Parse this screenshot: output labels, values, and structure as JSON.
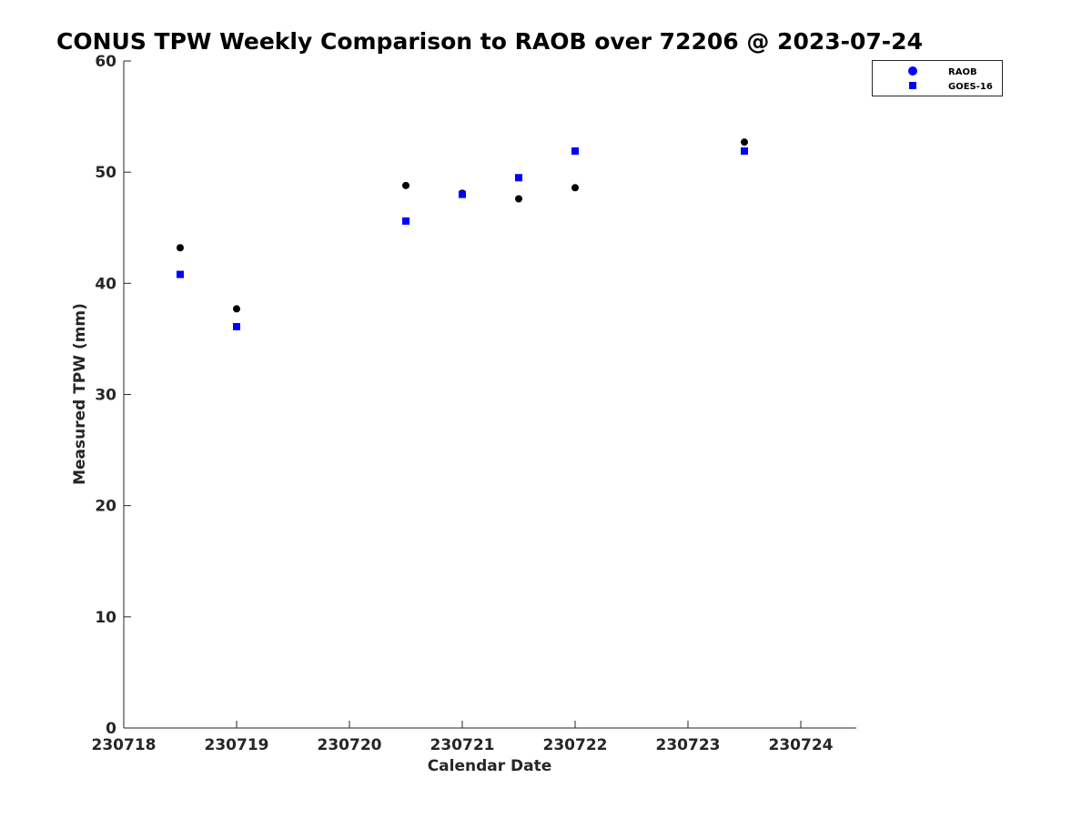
{
  "chart_data": {
    "type": "scatter",
    "title": "CONUS TPW Weekly Comparison to RAOB over 72206 @ 2023-07-24",
    "xlabel": "Calendar Date",
    "ylabel": "Measured TPW (mm)",
    "xlim": [
      0,
      6.5
    ],
    "ylim": [
      0,
      60
    ],
    "x_ticks": [
      {
        "value": 0,
        "label": "230718"
      },
      {
        "value": 1,
        "label": "230719"
      },
      {
        "value": 2,
        "label": "230720"
      },
      {
        "value": 3,
        "label": "230721"
      },
      {
        "value": 4,
        "label": "230722"
      },
      {
        "value": 5,
        "label": "230723"
      },
      {
        "value": 6,
        "label": "230724"
      }
    ],
    "y_ticks": [
      {
        "value": 0,
        "label": "0"
      },
      {
        "value": 10,
        "label": "10"
      },
      {
        "value": 20,
        "label": "20"
      },
      {
        "value": 30,
        "label": "30"
      },
      {
        "value": 40,
        "label": "40"
      },
      {
        "value": 50,
        "label": "50"
      },
      {
        "value": 60,
        "label": "60"
      }
    ],
    "grid": false,
    "legend_position": "top-right",
    "series": [
      {
        "name": "RAOB",
        "marker": "circle",
        "color": "#000000",
        "legend_color": "#0000ff",
        "x": [
          0.5,
          1.0,
          2.5,
          3.0,
          3.5,
          4.0,
          5.5
        ],
        "y": [
          43.2,
          37.7,
          48.8,
          48.1,
          47.6,
          48.6,
          52.7
        ]
      },
      {
        "name": "GOES-16",
        "marker": "square",
        "color": "#0000ff",
        "legend_color": "#0000ff",
        "x": [
          0.5,
          1.0,
          2.5,
          3.0,
          3.5,
          4.0,
          5.5
        ],
        "y": [
          40.8,
          36.1,
          45.6,
          48.0,
          49.5,
          51.9,
          51.9
        ]
      }
    ]
  }
}
